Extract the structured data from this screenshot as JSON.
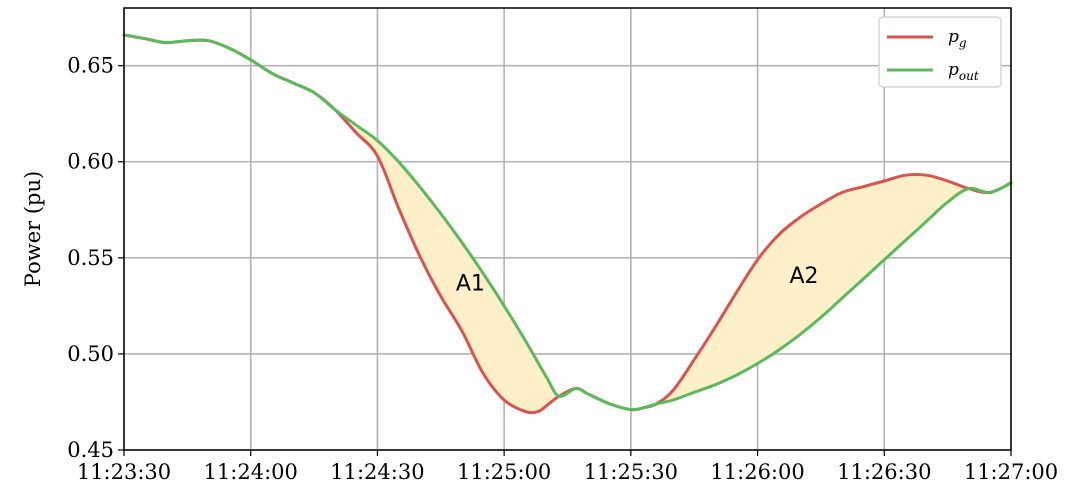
{
  "chart_data": {
    "type": "line",
    "title": "",
    "xlabel": "",
    "ylabel": "Power (pu)",
    "x_tick_labels": [
      "11:23:30",
      "11:24:00",
      "11:24:30",
      "11:25:00",
      "11:25:30",
      "11:26:00",
      "11:26:30",
      "11:27:00"
    ],
    "x_tick_seconds": [
      0,
      30,
      60,
      90,
      120,
      150,
      180,
      210
    ],
    "xlim_seconds": [
      0,
      210
    ],
    "y_ticks": [
      0.45,
      0.5,
      0.55,
      0.6,
      0.65
    ],
    "y_tick_labels": [
      "0.45",
      "0.50",
      "0.55",
      "0.60",
      "0.65"
    ],
    "ylim": [
      0.45,
      0.68
    ],
    "grid": true,
    "legend_position": "top-right",
    "series": [
      {
        "name": "p",
        "subscript": "g",
        "color": "#d9534f",
        "x": [
          0,
          5,
          10,
          15,
          20,
          25,
          30,
          35,
          40,
          45,
          50,
          55,
          60,
          65,
          70,
          75,
          80,
          85,
          90,
          95,
          98,
          100,
          103,
          107,
          110,
          115,
          120,
          123,
          126,
          130,
          135,
          140,
          145,
          150,
          155,
          160,
          165,
          170,
          175,
          180,
          185,
          190,
          195,
          200,
          205,
          210
        ],
        "y": [
          0.666,
          0.664,
          0.662,
          0.663,
          0.663,
          0.659,
          0.653,
          0.646,
          0.641,
          0.636,
          0.627,
          0.615,
          0.603,
          0.576,
          0.551,
          0.53,
          0.512,
          0.49,
          0.476,
          0.47,
          0.47,
          0.473,
          0.478,
          0.482,
          0.479,
          0.474,
          0.471,
          0.472,
          0.474,
          0.481,
          0.497,
          0.514,
          0.532,
          0.549,
          0.562,
          0.571,
          0.578,
          0.584,
          0.587,
          0.59,
          0.593,
          0.593,
          0.59,
          0.586,
          0.584,
          0.589
        ]
      },
      {
        "name": "p",
        "subscript": "out",
        "color": "#5cb85c",
        "x": [
          0,
          5,
          10,
          15,
          20,
          25,
          30,
          35,
          40,
          45,
          50,
          55,
          60,
          65,
          70,
          75,
          80,
          85,
          90,
          95,
          100,
          103,
          107,
          110,
          115,
          120,
          123,
          126,
          130,
          135,
          140,
          145,
          150,
          155,
          160,
          165,
          170,
          175,
          180,
          185,
          190,
          195,
          200,
          205,
          210
        ],
        "y": [
          0.666,
          0.664,
          0.662,
          0.663,
          0.663,
          0.659,
          0.653,
          0.646,
          0.641,
          0.636,
          0.627,
          0.619,
          0.611,
          0.6,
          0.587,
          0.573,
          0.558,
          0.542,
          0.525,
          0.507,
          0.488,
          0.478,
          0.482,
          0.479,
          0.474,
          0.471,
          0.472,
          0.474,
          0.476,
          0.48,
          0.484,
          0.489,
          0.495,
          0.502,
          0.51,
          0.519,
          0.529,
          0.539,
          0.549,
          0.559,
          0.569,
          0.579,
          0.586,
          0.584,
          0.589
        ]
      }
    ],
    "annotations": [
      {
        "text": "A1",
        "x": 82,
        "y": 0.533
      },
      {
        "text": "A2",
        "x": 161,
        "y": 0.537
      }
    ],
    "shaded_regions": [
      {
        "label": "A1",
        "x_from": 55,
        "x_to": 107
      },
      {
        "label": "A2",
        "x_from": 126,
        "x_to": 200
      }
    ],
    "shade_color": "#fdf0c8"
  }
}
